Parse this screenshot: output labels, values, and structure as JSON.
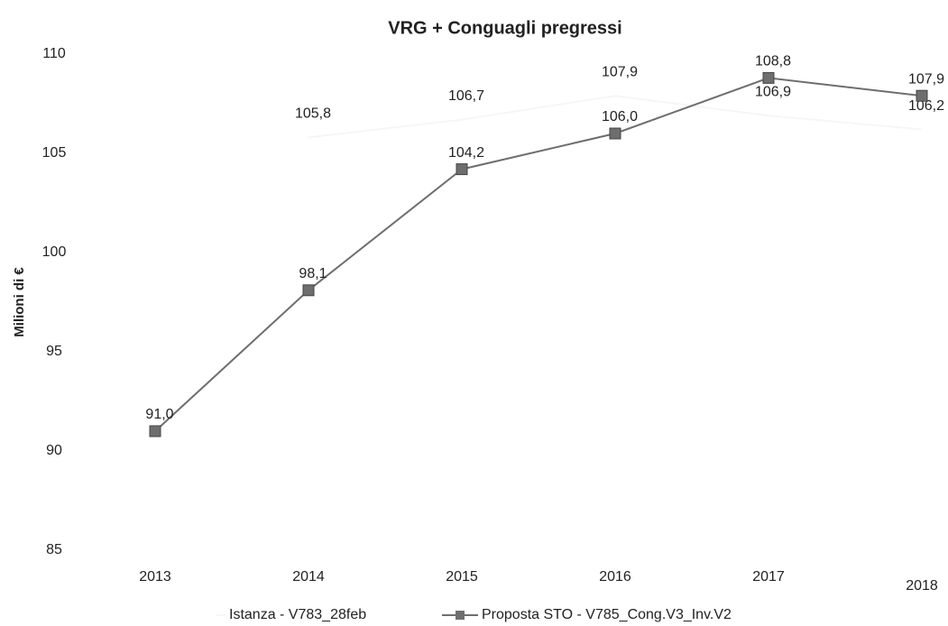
{
  "chart_data": {
    "type": "line",
    "title": "VRG + Conguagli pregressi",
    "y_label": "Milioni di €",
    "categories": [
      "2013",
      "2014",
      "2015",
      "2016",
      "2017",
      "2018"
    ],
    "ylim": [
      85,
      110
    ],
    "yticks": [
      85,
      90,
      95,
      100,
      105,
      110
    ],
    "grid": false,
    "series": [
      {
        "name": "Istanza - V783_28feb",
        "color": "#f6f6f6",
        "marker": false,
        "values": [
          null,
          105.8,
          106.7,
          107.9,
          106.9,
          106.2
        ],
        "value_labels": [
          null,
          "105,8",
          "106,7",
          "107,9",
          "106,9",
          "106,2"
        ]
      },
      {
        "name": "Proposta STO - V785_Cong.V3_Inv.V2",
        "color": "#6e6e6e",
        "marker": true,
        "values": [
          91.0,
          98.1,
          104.2,
          106.0,
          108.8,
          107.9
        ],
        "value_labels": [
          "91,0",
          "98,1",
          "104,2",
          "106,0",
          "108,8",
          "107,9"
        ]
      }
    ]
  }
}
